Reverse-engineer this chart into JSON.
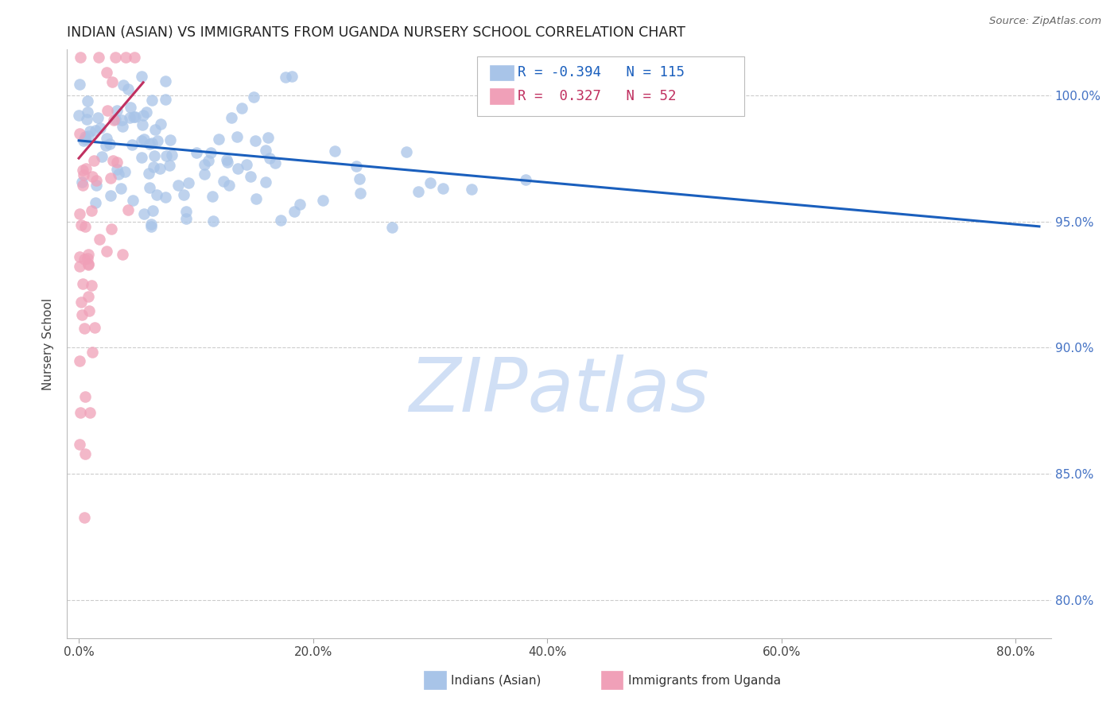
{
  "title": "INDIAN (ASIAN) VS IMMIGRANTS FROM UGANDA NURSERY SCHOOL CORRELATION CHART",
  "source": "Source: ZipAtlas.com",
  "xlabel_ticks": [
    "0.0%",
    "20.0%",
    "40.0%",
    "60.0%",
    "80.0%"
  ],
  "xlabel_tick_vals": [
    0.0,
    20.0,
    40.0,
    60.0,
    80.0
  ],
  "ylabel": "Nursery School",
  "ytick_vals": [
    80.0,
    85.0,
    90.0,
    95.0,
    100.0
  ],
  "ytick_labels": [
    "80.0%",
    "85.0%",
    "90.0%",
    "95.0%",
    "100.0%"
  ],
  "xlim": [
    -1.0,
    83.0
  ],
  "ylim": [
    78.5,
    101.8
  ],
  "blue_R": -0.394,
  "blue_N": 115,
  "pink_R": 0.327,
  "pink_N": 52,
  "blue_color": "#a8c4e8",
  "pink_color": "#f0a0b8",
  "blue_line_color": "#1a5fbd",
  "pink_line_color": "#c03060",
  "watermark_color": "#d0dff5",
  "legend_label_blue": "Indians (Asian)",
  "legend_label_pink": "Immigrants from Uganda",
  "blue_line_x0": 0.0,
  "blue_line_y0": 98.2,
  "blue_line_x1": 82.0,
  "blue_line_y1": 94.8,
  "pink_line_x0": 0.0,
  "pink_line_y0": 97.5,
  "pink_line_x1": 5.5,
  "pink_line_y1": 100.5
}
